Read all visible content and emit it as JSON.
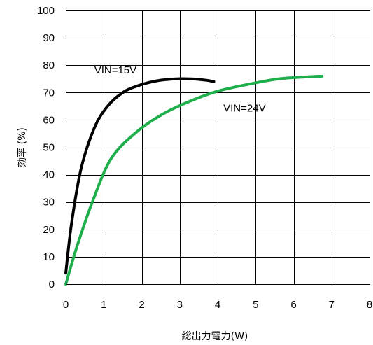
{
  "chart_data": {
    "type": "line",
    "xlabel": "総出力電力(W)",
    "ylabel": "効率 (%)",
    "xlim": [
      0,
      8
    ],
    "ylim": [
      0,
      100
    ],
    "x_ticks": [
      "0",
      "1",
      "2",
      "3",
      "4",
      "5",
      "6",
      "7",
      "8"
    ],
    "y_ticks": [
      "0",
      "10",
      "20",
      "30",
      "40",
      "50",
      "60",
      "70",
      "80",
      "90",
      "100"
    ],
    "grid": true,
    "series": [
      {
        "name": "VIN=15V",
        "color": "#000000",
        "x": [
          0,
          0.15,
          0.4,
          0.75,
          1.1,
          1.5,
          1.9,
          2.4,
          2.9,
          3.3,
          3.7,
          3.9
        ],
        "y": [
          4,
          22,
          42,
          57,
          65,
          70,
          72.5,
          74.3,
          75,
          75,
          74.5,
          74
        ]
      },
      {
        "name": "VIN=24V",
        "color": "#1fae4c",
        "x": [
          0,
          0.3,
          0.7,
          1.2,
          1.9,
          2.6,
          3.3,
          4,
          4.8,
          5.6,
          6.3,
          6.75
        ],
        "y": [
          0,
          14,
          30,
          46,
          56,
          62.5,
          67,
          70.5,
          73,
          75,
          75.7,
          76
        ]
      }
    ]
  }
}
